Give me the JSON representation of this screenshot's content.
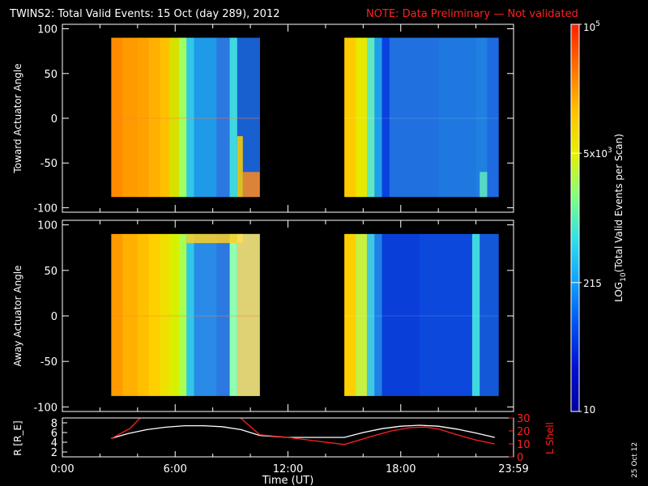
{
  "header": {
    "title": "TWINS2: Total Valid Events: 15 Oct (day 289), 2012",
    "note": "NOTE: Data Preliminary — Not validated"
  },
  "date_stamp": "25 Oct 12",
  "colors": {
    "background": "#000000",
    "axis": "#ffffff",
    "note": "#ff2020",
    "r_line": "#ffffff",
    "lshell_line": "#ff2020"
  },
  "chart_data": [
    {
      "type": "heatmap",
      "name": "toward",
      "ylabel": "Toward Actuator Angle",
      "ylim": [
        -105,
        105
      ],
      "yticks": [
        100,
        50,
        0,
        -50,
        -100
      ],
      "xlim": [
        0,
        24
      ],
      "data_extent": {
        "x": [
          2.6,
          23.2
        ],
        "y": [
          -88,
          90
        ]
      },
      "gap_hours": [
        10.5,
        15.0
      ],
      "columns": [
        {
          "x0": 2.6,
          "x1": 3.2,
          "c": "#ff8c00"
        },
        {
          "x0": 3.2,
          "x1": 4.0,
          "c": "#ff9a00"
        },
        {
          "x0": 4.0,
          "x1": 4.6,
          "c": "#ffa200"
        },
        {
          "x0": 4.6,
          "x1": 5.2,
          "c": "#ffb000"
        },
        {
          "x0": 5.2,
          "x1": 5.7,
          "c": "#ffc000"
        },
        {
          "x0": 5.7,
          "x1": 6.2,
          "c": "#d8e000"
        },
        {
          "x0": 6.2,
          "x1": 6.6,
          "c": "#a0ff60"
        },
        {
          "x0": 6.6,
          "x1": 7.0,
          "c": "#30c8e8"
        },
        {
          "x0": 7.0,
          "x1": 8.2,
          "c": "#1e9ae8"
        },
        {
          "x0": 8.2,
          "x1": 8.9,
          "c": "#2a78e0"
        },
        {
          "x0": 8.9,
          "x1": 9.3,
          "c": "#40d8e0"
        },
        {
          "x0": 9.3,
          "x1": 10.5,
          "c": "#1860d0"
        },
        {
          "x0": 15.0,
          "x1": 15.6,
          "c": "#ffcc00"
        },
        {
          "x0": 15.6,
          "x1": 16.2,
          "c": "#e8e800"
        },
        {
          "x0": 16.2,
          "x1": 16.6,
          "c": "#60e8c0"
        },
        {
          "x0": 16.6,
          "x1": 17.0,
          "c": "#1ea0e8"
        },
        {
          "x0": 17.0,
          "x1": 17.4,
          "c": "#0a40e0"
        },
        {
          "x0": 17.4,
          "x1": 20.0,
          "c": "#2070e0"
        },
        {
          "x0": 20.0,
          "x1": 22.0,
          "c": "#1e78e0"
        },
        {
          "x0": 22.0,
          "x1": 22.6,
          "c": "#2080e0"
        },
        {
          "x0": 22.6,
          "x1": 23.2,
          "c": "#1e6ae0"
        }
      ],
      "features": [
        {
          "x0": 9.6,
          "x1": 10.5,
          "y0": -88,
          "y1": -60,
          "c": "#ff8a20"
        },
        {
          "x0": 9.3,
          "x1": 9.6,
          "y0": -88,
          "y1": -20,
          "c": "#ffd000"
        },
        {
          "x0": 22.2,
          "x1": 22.6,
          "y0": -88,
          "y1": -60,
          "c": "#60e8c0"
        }
      ]
    },
    {
      "type": "heatmap",
      "name": "away",
      "ylabel": "Away Actuator Angle",
      "ylim": [
        -105,
        105
      ],
      "yticks": [
        100,
        50,
        0,
        -50,
        -100
      ],
      "xlim": [
        0,
        24
      ],
      "data_extent": {
        "x": [
          2.6,
          23.2
        ],
        "y": [
          -88,
          90
        ]
      },
      "gap_hours": [
        10.5,
        15.0
      ],
      "columns": [
        {
          "x0": 2.6,
          "x1": 3.2,
          "c": "#ff9a00"
        },
        {
          "x0": 3.2,
          "x1": 4.0,
          "c": "#ffb000"
        },
        {
          "x0": 4.0,
          "x1": 4.6,
          "c": "#ffc000"
        },
        {
          "x0": 4.6,
          "x1": 5.2,
          "c": "#ffd000"
        },
        {
          "x0": 5.2,
          "x1": 5.7,
          "c": "#f0e000"
        },
        {
          "x0": 5.7,
          "x1": 6.2,
          "c": "#d8f000"
        },
        {
          "x0": 6.2,
          "x1": 6.6,
          "c": "#a8ff50"
        },
        {
          "x0": 6.6,
          "x1": 7.0,
          "c": "#30c8e8"
        },
        {
          "x0": 7.0,
          "x1": 8.2,
          "c": "#2a8ae8"
        },
        {
          "x0": 8.2,
          "x1": 8.9,
          "c": "#2a78e0"
        },
        {
          "x0": 8.9,
          "x1": 9.3,
          "c": "#90ffb0"
        },
        {
          "x0": 9.3,
          "x1": 10.5,
          "c": "#2880e0"
        },
        {
          "x0": 15.0,
          "x1": 15.6,
          "c": "#ffd000"
        },
        {
          "x0": 15.6,
          "x1": 16.2,
          "c": "#c8f040"
        },
        {
          "x0": 16.2,
          "x1": 16.6,
          "c": "#40c8e0"
        },
        {
          "x0": 16.6,
          "x1": 17.0,
          "c": "#1e80e8"
        },
        {
          "x0": 17.0,
          "x1": 19.0,
          "c": "#0a3ed8"
        },
        {
          "x0": 19.0,
          "x1": 21.8,
          "c": "#0c48dc"
        },
        {
          "x0": 21.8,
          "x1": 22.2,
          "c": "#40d8e0"
        },
        {
          "x0": 22.2,
          "x1": 23.2,
          "c": "#1258d8"
        }
      ],
      "features": [
        {
          "x0": 6.6,
          "x1": 9.6,
          "y0": 80,
          "y1": 90,
          "c": "#ffd020"
        },
        {
          "x0": 9.3,
          "x1": 10.5,
          "y0": -88,
          "y1": 90,
          "c": "#ffe060"
        }
      ]
    },
    {
      "type": "line",
      "name": "orbit",
      "ylabel": "R [R_E]",
      "y2label": "L Shell",
      "xlabel": "Time (UT)",
      "xlim": [
        0,
        24
      ],
      "ylim": [
        1,
        9
      ],
      "y2lim": [
        0,
        30
      ],
      "yticks": [
        2,
        4,
        6,
        8
      ],
      "y2ticks": [
        0,
        10,
        20,
        30
      ],
      "xticks": [
        {
          "v": 0,
          "label": "0:00"
        },
        {
          "v": 6,
          "label": "6:00"
        },
        {
          "v": 12,
          "label": "12:00"
        },
        {
          "v": 18,
          "label": "18:00"
        },
        {
          "v": 24,
          "label": "23:59"
        }
      ],
      "series": [
        {
          "axis": "left",
          "color": "#ffffff",
          "x": [
            2.6,
            3.5,
            4.5,
            5.5,
            6.5,
            7.5,
            8.5,
            9.5,
            10.5,
            12.0,
            13.5,
            15.0,
            16.0,
            17.0,
            18.0,
            19.0,
            20.0,
            21.0,
            22.0,
            23.0
          ],
          "y": [
            4.8,
            5.8,
            6.6,
            7.1,
            7.4,
            7.4,
            7.2,
            6.6,
            5.4,
            5.0,
            5.0,
            5.0,
            6.0,
            6.8,
            7.3,
            7.5,
            7.3,
            6.7,
            5.9,
            5.0
          ]
        },
        {
          "axis": "right",
          "color": "#ff2020",
          "x": [
            2.6,
            3.6,
            4.2,
            9.4,
            10.5,
            12.0,
            15.0,
            16.5,
            17.5,
            18.5,
            19.3,
            20.0,
            21.0,
            22.0,
            23.0
          ],
          "y": [
            14,
            22,
            31,
            31,
            17,
            15,
            9.5,
            16,
            20,
            22.5,
            23,
            21.5,
            17,
            13,
            10
          ]
        }
      ]
    }
  ],
  "colorbar": {
    "ylabel_main": "LOG",
    "ylabel_sub": "10",
    "ylabel_rest": "(Total Valid Events per Scan)",
    "stops": [
      "#0000a0",
      "#0010d0",
      "#0050f0",
      "#10a0ff",
      "#30e0e8",
      "#80ff80",
      "#e8f000",
      "#ffc000",
      "#ff7000",
      "#ff2000"
    ],
    "ticks": [
      {
        "frac": 0.0,
        "label": "10",
        "sup": ""
      },
      {
        "frac": 0.333,
        "label": "215",
        "sup": ""
      },
      {
        "frac": 0.667,
        "label": "5x10",
        "sup": "3"
      },
      {
        "frac": 1.0,
        "label": "10",
        "sup": "5"
      }
    ]
  }
}
